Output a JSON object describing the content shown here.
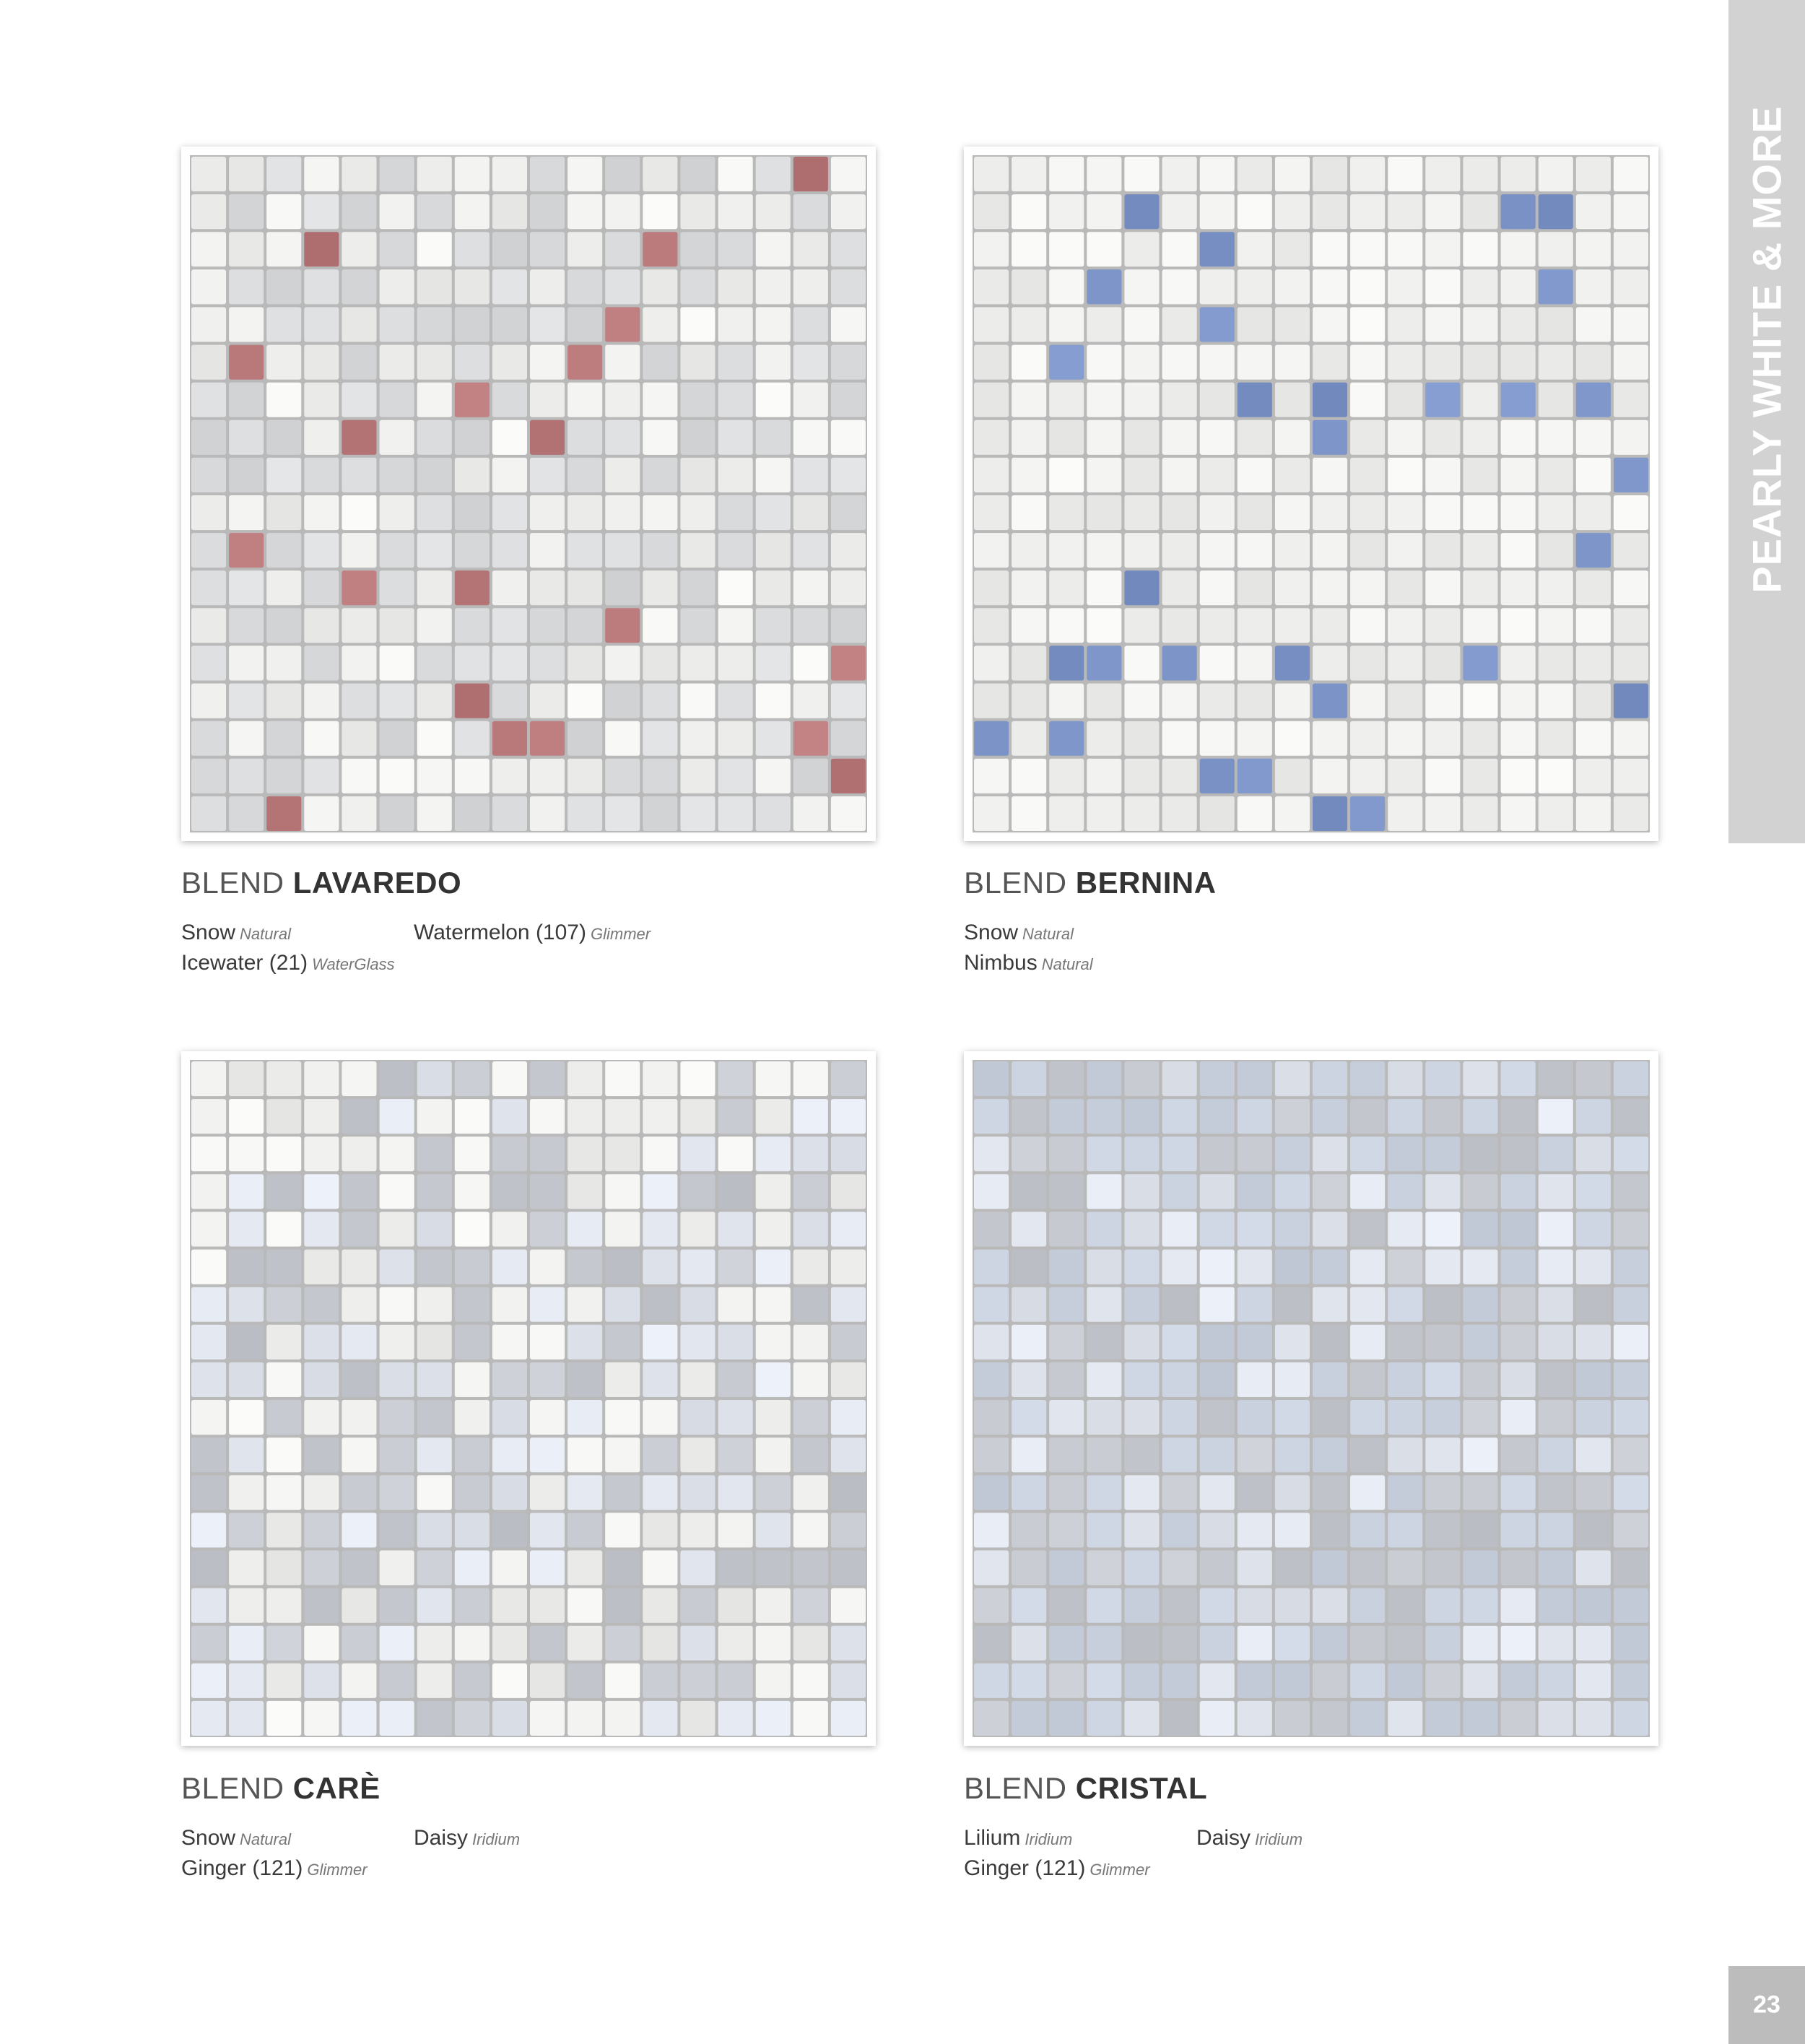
{
  "side_tab": {
    "label": "PEARLY WHITE & MORE"
  },
  "page_number": "23",
  "blends": [
    {
      "prefix": "BLEND",
      "name": "LAVAREDO",
      "palette": "lavaredo",
      "colors": [
        {
          "name": "Snow",
          "finish": "Natural"
        },
        {
          "name": "Icewater (21)",
          "finish": "WaterGlass"
        },
        {
          "name": "Watermelon (107)",
          "finish": "Glimmer"
        }
      ]
    },
    {
      "prefix": "BLEND",
      "name": "BERNINA",
      "palette": "bernina",
      "colors": [
        {
          "name": "Snow",
          "finish": "Natural"
        },
        {
          "name": "Nimbus",
          "finish": "Natural"
        }
      ]
    },
    {
      "prefix": "BLEND",
      "name": "CARÈ",
      "palette": "care",
      "colors": [
        {
          "name": "Snow",
          "finish": "Natural"
        },
        {
          "name": "Ginger (121)",
          "finish": "Glimmer"
        },
        {
          "name": "Daisy",
          "finish": "Iridium"
        }
      ]
    },
    {
      "prefix": "BLEND",
      "name": "CRISTAL",
      "palette": "cristal",
      "colors": [
        {
          "name": "Lilium",
          "finish": "Iridium"
        },
        {
          "name": "Ginger (121)",
          "finish": "Glimmer"
        },
        {
          "name": "Daisy",
          "finish": "Iridium"
        }
      ]
    }
  ],
  "colors_theme": {
    "snow": "#f0f0ee",
    "icewater": "#d9dbdc",
    "watermelon": "#b8787a",
    "nimbus": "#7b93c6",
    "ginger": "#c6c8cf",
    "daisy": "#e2e6ef",
    "lilium": "#c9d0de",
    "grout": "#b9b9b9"
  }
}
